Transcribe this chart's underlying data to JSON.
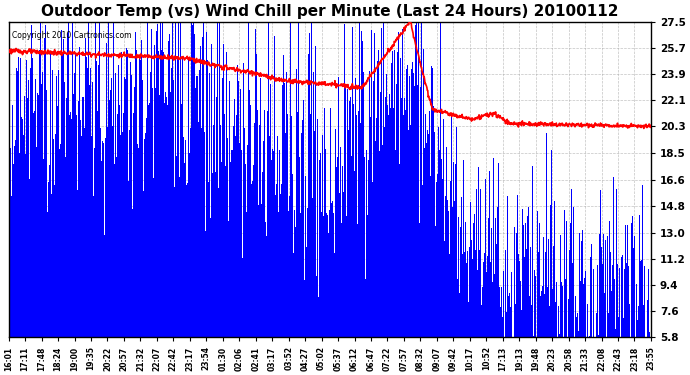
{
  "title": "Outdoor Temp (vs) Wind Chill per Minute (Last 24 Hours) 20100112",
  "copyright": "Copyright 2010 Cartronics.com",
  "yticks": [
    5.8,
    7.6,
    9.4,
    11.2,
    13.0,
    14.8,
    16.6,
    18.5,
    20.3,
    22.1,
    23.9,
    25.7,
    27.5
  ],
  "xtick_labels": [
    "16:01",
    "17:11",
    "17:48",
    "18:24",
    "19:00",
    "19:35",
    "20:22",
    "20:57",
    "21:32",
    "22:07",
    "22:42",
    "23:17",
    "23:54",
    "01:30",
    "02:06",
    "02:41",
    "03:17",
    "03:52",
    "04:27",
    "05:02",
    "05:37",
    "06:12",
    "06:47",
    "07:22",
    "07:57",
    "08:32",
    "09:07",
    "09:42",
    "10:17",
    "10:52",
    "17:13",
    "19:13",
    "19:48",
    "20:23",
    "20:58",
    "21:33",
    "22:08",
    "22:43",
    "23:18",
    "23:55"
  ],
  "ymin": 5.8,
  "ymax": 27.5,
  "bar_color": "#0000ff",
  "line_color": "#ff0000",
  "background_color": "#ffffff",
  "grid_color": "#aaaaaa",
  "title_fontsize": 11,
  "figsize": [
    6.9,
    3.75
  ],
  "dpi": 100
}
